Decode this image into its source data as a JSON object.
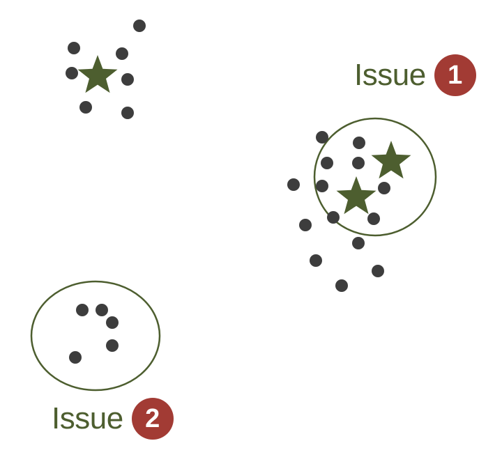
{
  "colors": {
    "dot": "#3d3d3d",
    "star": "#4d5e2f",
    "circle_stroke": "#4d5e2f",
    "label_text": "#4d5e2f",
    "badge": "#a23b34"
  },
  "annotations": [
    {
      "id": "issue-1",
      "text": "Issue",
      "number": "1"
    },
    {
      "id": "issue-2",
      "text": "Issue",
      "number": "2"
    }
  ]
}
